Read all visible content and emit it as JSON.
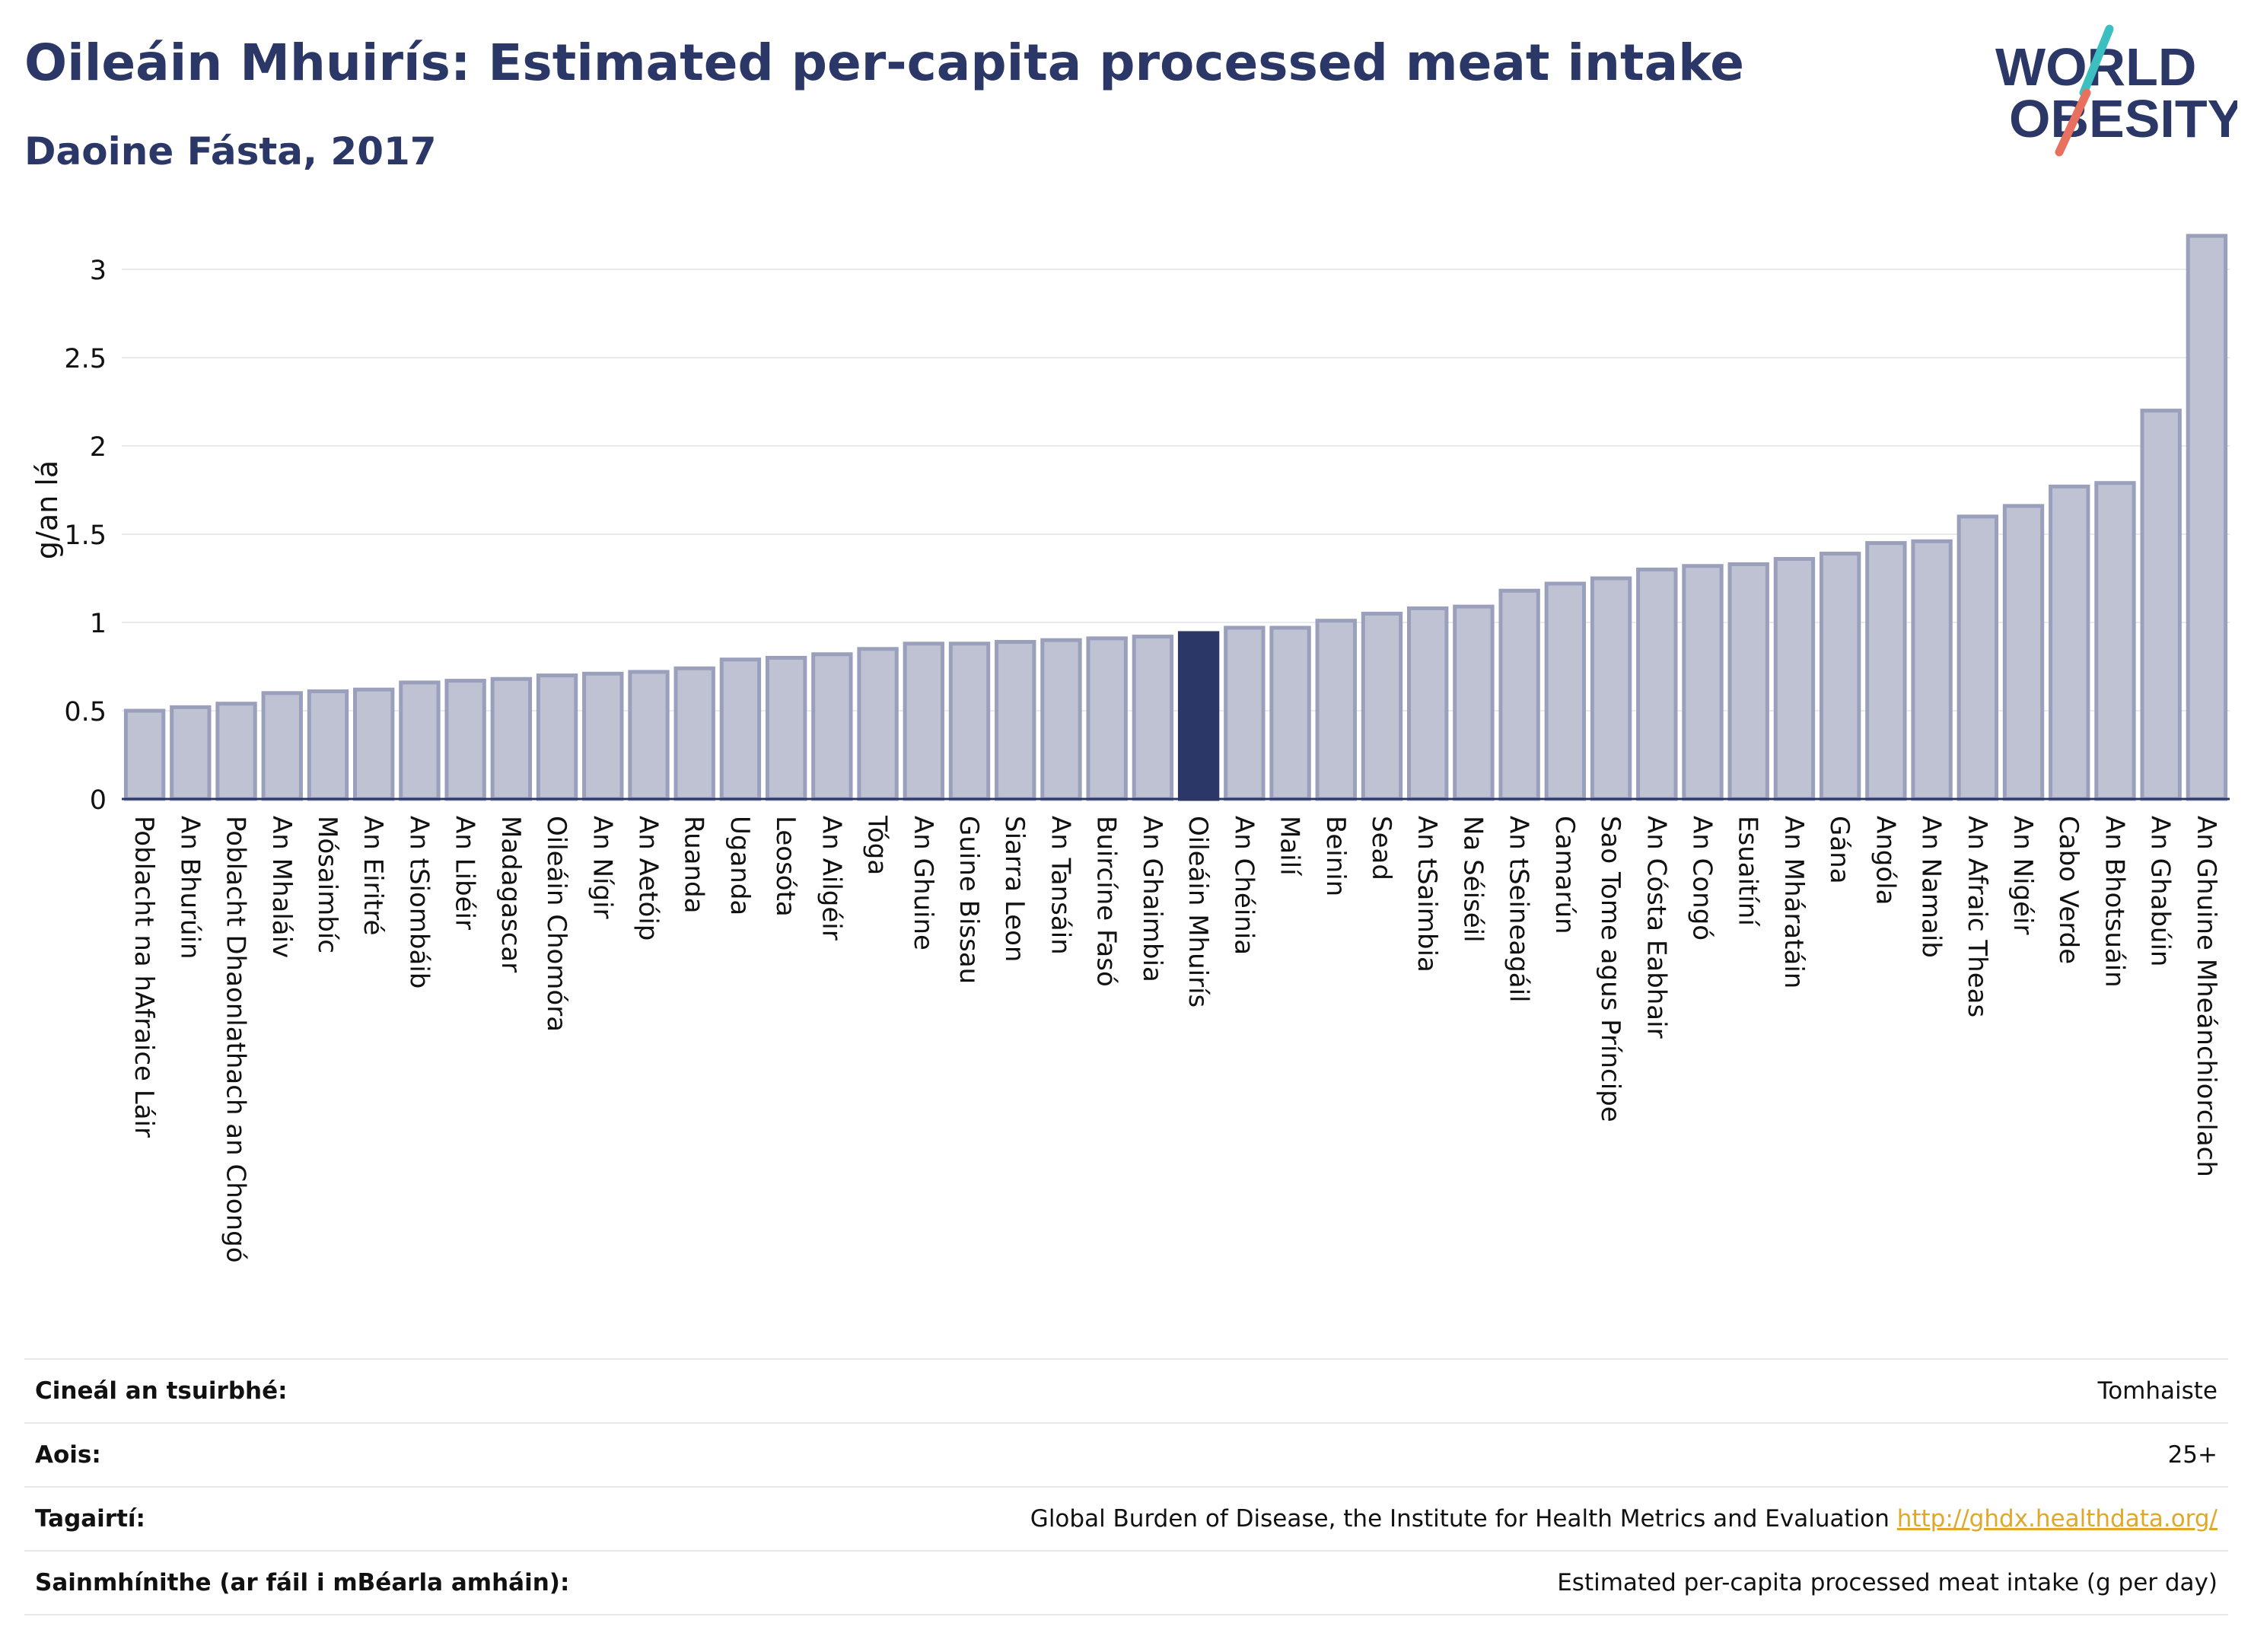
{
  "header": {
    "title": "Oileáin Mhuirís: Estimated per-capita processed meat intake",
    "subtitle": "Daoine Fásta, 2017"
  },
  "logo": {
    "line1": "WORLD",
    "line2": "OBESITY",
    "colors": {
      "text": "#2b3766",
      "slash_teal": "#3bbfc0",
      "slash_coral": "#e8705e"
    }
  },
  "chart_data": {
    "type": "bar",
    "ylabel": "g/an lá",
    "ylim": [
      0,
      3.3
    ],
    "yticks": [
      "0",
      "0.5",
      "1",
      "1.5",
      "2",
      "2.5",
      "3"
    ],
    "grid": true,
    "highlight": "Oileáin Mhuirís",
    "colors": {
      "bar": "#bec2d3",
      "bar_outline": "#9aa0bb",
      "highlight": "#2b3766",
      "axis": "#2b3766"
    },
    "categories": [
      "Poblacht na hAfraice Láir",
      "An Bhurúin",
      "Poblacht Dhaonlathach an Chongó",
      "An Mhaláiv",
      "Mósaimbíc",
      "An Eiritré",
      "An tSiombáib",
      "An Libéir",
      "Madagascar",
      "Oileáin Chomóra",
      "An Nígir",
      "An Aetóip",
      "Ruanda",
      "Uganda",
      "Leosóta",
      "An Ailgéir",
      "Tóga",
      "An Ghuine",
      "Guine Bissau",
      "Siarra Leon",
      "An Tansáin",
      "Buircíne Fasó",
      "An Ghaimbia",
      "Oileáin Mhuirís",
      "An Chéinia",
      "Mailí",
      "Beinin",
      "Sead",
      "An tSaimbia",
      "Na Séiséil",
      "An tSeineagáil",
      "Camarún",
      "Sao Tome agus Príncipe",
      "An Cósta Eabhair",
      "An Congó",
      "Esuaitíní",
      "An Mháratáin",
      "Gána",
      "Angóla",
      "An Namaib",
      "An Afraic Theas",
      "An Nigéir",
      "Cabo Verde",
      "An Bhotsuáin",
      "An Ghabúin",
      "An Ghuine Mheánchiorclach"
    ],
    "values": [
      0.5,
      0.52,
      0.54,
      0.6,
      0.61,
      0.62,
      0.66,
      0.67,
      0.68,
      0.7,
      0.71,
      0.72,
      0.74,
      0.79,
      0.8,
      0.82,
      0.85,
      0.88,
      0.88,
      0.89,
      0.9,
      0.91,
      0.92,
      0.94,
      0.97,
      0.97,
      1.01,
      1.05,
      1.08,
      1.09,
      1.18,
      1.22,
      1.25,
      1.3,
      1.32,
      1.33,
      1.36,
      1.39,
      1.45,
      1.46,
      1.6,
      1.66,
      1.77,
      1.79,
      2.2,
      3.19
    ]
  },
  "meta_table": [
    {
      "key": "Cineál an tsuirbhé:",
      "value": "Tomhaiste"
    },
    {
      "key": "Aois:",
      "value": "25+"
    },
    {
      "key": "Tagairtí:",
      "value": "Global Burden of Disease, the Institute for Health Metrics and Evaluation",
      "link": "http://ghdx.healthdata.org/"
    },
    {
      "key": "Sainmhínithe (ar fáil i mBéarla amháin):",
      "value": "Estimated per-capita processed meat intake (g per day)"
    }
  ]
}
